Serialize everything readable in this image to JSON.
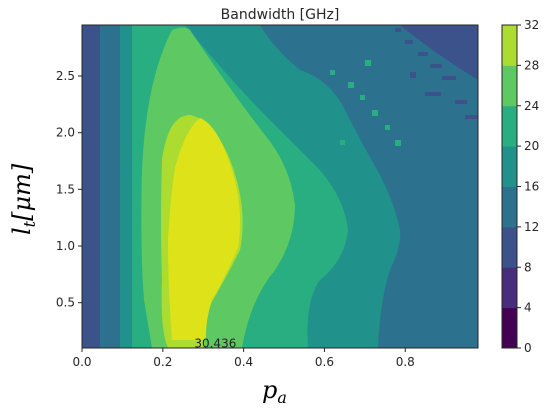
{
  "chart_data": {
    "type": "heatmap",
    "subtype": "filled-contour",
    "title": "Bandwidth [GHz]",
    "xlabel": "p",
    "xlabel_sub": "a",
    "ylabel": "l",
    "ylabel_sub": "t",
    "ylabel_unit": "[μm]",
    "xlim": [
      0.0,
      0.98
    ],
    "ylim": [
      0.1,
      2.95
    ],
    "xticks": [
      "0.0",
      "0.2",
      "0.4",
      "0.6",
      "0.8"
    ],
    "yticks": [
      "0.5",
      "1.0",
      "1.5",
      "2.0",
      "2.5"
    ],
    "colorbar": {
      "levels": [
        0,
        4,
        8,
        12,
        16,
        20,
        24,
        28,
        32
      ],
      "ticks": [
        "0",
        "4",
        "8",
        "12",
        "16",
        "20",
        "24",
        "28",
        "32"
      ],
      "colors": [
        "#440154",
        "#472d7b",
        "#3b528b",
        "#2c728e",
        "#21918c",
        "#28ae80",
        "#5ec962",
        "#addc30",
        "#dde318"
      ],
      "colormap": "viridis"
    },
    "regions": [
      {
        "range": [
          8,
          12
        ],
        "color": "#3b528b"
      },
      {
        "range": [
          12,
          16
        ],
        "color": "#2c728e"
      },
      {
        "range": [
          16,
          20
        ],
        "color": "#21918c"
      },
      {
        "range": [
          20,
          24
        ],
        "color": "#28ae80"
      },
      {
        "range": [
          24,
          28
        ],
        "color": "#5ec962"
      },
      {
        "range": [
          28,
          32
        ],
        "color": "#addc30"
      },
      {
        "range": [
          32,
          36
        ],
        "color": "#dde318"
      }
    ],
    "annotations": [
      {
        "text": "30.436",
        "x": 0.33,
        "y": 0.12
      }
    ],
    "grid": false
  }
}
